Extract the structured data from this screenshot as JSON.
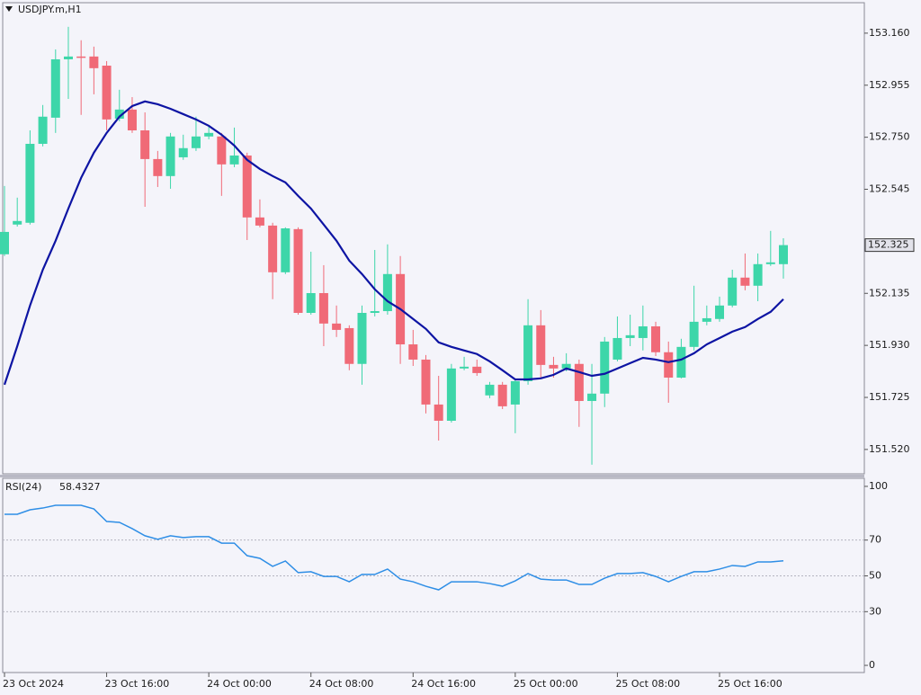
{
  "chart_data": [
    {
      "type": "candlestick",
      "title": "USDJPY.m,H1",
      "categories": [
        "23 Oct 2024",
        null,
        null,
        null,
        null,
        null,
        null,
        null,
        "23 Oct 16:00",
        null,
        null,
        null,
        null,
        null,
        null,
        null,
        "24 Oct 00:00",
        null,
        null,
        null,
        null,
        null,
        null,
        null,
        "24 Oct 08:00",
        null,
        null,
        null,
        null,
        null,
        null,
        null,
        "24 Oct 16:00",
        null,
        null,
        null,
        null,
        null,
        null,
        null,
        "25 Oct 00:00",
        null,
        null,
        null,
        null,
        null,
        null,
        null,
        "25 Oct 08:00",
        null,
        null,
        null,
        null,
        null,
        null,
        null,
        "25 Oct 16:00",
        null,
        null,
        null,
        null,
        null
      ],
      "open": [
        152.289,
        152.406,
        152.413,
        152.724,
        152.827,
        153.057,
        153.068,
        153.068,
        153.032,
        152.823,
        152.859,
        152.777,
        152.664,
        152.597,
        152.671,
        152.707,
        152.753,
        152.753,
        152.643,
        152.678,
        152.434,
        152.402,
        152.218,
        152.388,
        152.058,
        152.136,
        152.016,
        151.998,
        151.857,
        152.058,
        152.065,
        152.211,
        151.934,
        151.874,
        151.697,
        151.633,
        151.839,
        151.846,
        151.733,
        151.775,
        151.697,
        151.789,
        152.009,
        151.853,
        151.839,
        151.857,
        151.711,
        151.74,
        151.874,
        151.959,
        151.959,
        152.005,
        151.903,
        151.803,
        151.924,
        152.023,
        152.034,
        152.087,
        152.197,
        152.165,
        152.25,
        152.25
      ],
      "high": [
        152.558,
        152.512,
        152.777,
        152.877,
        153.096,
        153.185,
        153.132,
        153.107,
        153.05,
        152.937,
        152.908,
        152.848,
        152.696,
        152.767,
        152.76,
        152.831,
        152.795,
        152.767,
        152.788,
        152.689,
        152.505,
        152.413,
        152.395,
        152.395,
        152.299,
        152.246,
        152.087,
        152.009,
        152.087,
        152.306,
        152.328,
        152.282,
        151.991,
        151.892,
        151.81,
        151.857,
        151.885,
        151.874,
        151.786,
        151.786,
        151.796,
        152.112,
        152.069,
        151.885,
        151.899,
        151.874,
        151.857,
        151.963,
        152.044,
        152.051,
        152.087,
        152.023,
        151.945,
        151.956,
        152.165,
        152.087,
        152.122,
        152.228,
        152.292,
        152.292,
        152.381,
        152.352
      ],
      "low": [
        152.282,
        152.398,
        152.406,
        152.714,
        152.767,
        152.901,
        152.838,
        152.919,
        152.777,
        152.813,
        152.767,
        152.476,
        152.554,
        152.547,
        152.661,
        152.696,
        152.742,
        152.519,
        152.632,
        152.345,
        152.395,
        152.112,
        152.211,
        152.051,
        152.051,
        151.927,
        151.963,
        151.832,
        151.775,
        152.044,
        152.051,
        151.857,
        151.849,
        151.662,
        151.555,
        151.626,
        151.832,
        151.81,
        151.722,
        151.679,
        151.584,
        151.775,
        151.803,
        151.803,
        151.828,
        151.609,
        151.46,
        151.687,
        151.867,
        151.927,
        151.91,
        151.888,
        151.704,
        151.8,
        151.91,
        152.009,
        152.023,
        152.08,
        152.147,
        152.104,
        152.243,
        152.193
      ],
      "close": [
        152.377,
        152.42,
        152.724,
        152.831,
        153.057,
        153.068,
        153.065,
        153.022,
        152.82,
        152.859,
        152.777,
        152.664,
        152.597,
        152.753,
        152.707,
        152.753,
        152.767,
        152.643,
        152.678,
        152.434,
        152.402,
        152.218,
        152.391,
        152.058,
        152.136,
        152.016,
        151.991,
        151.857,
        152.058,
        152.065,
        152.211,
        151.934,
        151.874,
        151.697,
        151.633,
        151.839,
        151.846,
        151.821,
        151.775,
        151.69,
        151.789,
        152.009,
        151.853,
        151.839,
        151.857,
        151.711,
        151.74,
        151.945,
        151.959,
        151.97,
        152.005,
        151.903,
        151.803,
        151.924,
        152.023,
        152.037,
        152.087,
        152.197,
        152.165,
        152.25,
        152.257,
        152.325
      ],
      "up_color": "#3dd6a9",
      "down_color": "#f06a77",
      "ma": {
        "color": "#0d14a3",
        "values": [
          151.775,
          151.927,
          152.087,
          152.228,
          152.342,
          152.469,
          152.59,
          152.689,
          152.767,
          152.831,
          152.873,
          152.891,
          152.88,
          152.862,
          152.841,
          152.82,
          152.795,
          152.76,
          152.717,
          152.661,
          152.625,
          152.597,
          152.572,
          152.519,
          152.469,
          152.406,
          152.342,
          152.264,
          152.211,
          152.151,
          152.104,
          152.073,
          152.034,
          151.995,
          151.942,
          151.924,
          151.91,
          151.896,
          151.867,
          151.832,
          151.796,
          151.796,
          151.8,
          151.814,
          151.839,
          151.825,
          151.81,
          151.818,
          151.839,
          151.86,
          151.881,
          151.874,
          151.864,
          151.874,
          151.899,
          151.934,
          151.959,
          151.984,
          152.002,
          152.034,
          152.062,
          152.112
        ]
      },
      "last_price_label": "152.325",
      "ylim": [
        151.424,
        153.28
      ],
      "yticks": [
        {
          "value": 153.16,
          "label": "153.160"
        },
        {
          "value": 152.955,
          "label": "152.955"
        },
        {
          "value": 152.75,
          "label": "152.750"
        },
        {
          "value": 152.545,
          "label": "152.545"
        },
        {
          "value": 152.135,
          "label": "152.135"
        },
        {
          "value": 151.93,
          "label": "151.930"
        },
        {
          "value": 151.725,
          "label": "151.725"
        },
        {
          "value": 151.52,
          "label": "151.520"
        }
      ]
    },
    {
      "type": "line",
      "title": "RSI(24)",
      "series": [
        {
          "color": "#2e8ee6",
          "values": [
            84.4,
            84.4,
            86.9,
            87.9,
            89.4,
            89.4,
            89.4,
            87.4,
            80.4,
            79.9,
            76.4,
            72.4,
            70.4,
            72.4,
            71.4,
            71.9,
            71.9,
            68.3,
            68.3,
            61.3,
            59.8,
            55.3,
            58.3,
            51.8,
            52.3,
            49.7,
            49.7,
            46.7,
            50.8,
            50.8,
            53.8,
            48.2,
            46.7,
            44.2,
            42.2,
            46.7,
            46.7,
            46.7,
            45.7,
            44.2,
            47.2,
            51.3,
            48.2,
            47.7,
            47.7,
            45.2,
            45.2,
            48.7,
            51.3,
            51.3,
            51.8,
            49.7,
            46.7,
            49.7,
            52.3,
            52.3,
            53.8,
            55.8,
            55.3,
            57.8,
            57.8,
            58.4327
          ]
        }
      ],
      "ylim": [
        -4,
        104.5
      ],
      "yticks": [
        100,
        70,
        50,
        30,
        0
      ]
    }
  ]
}
